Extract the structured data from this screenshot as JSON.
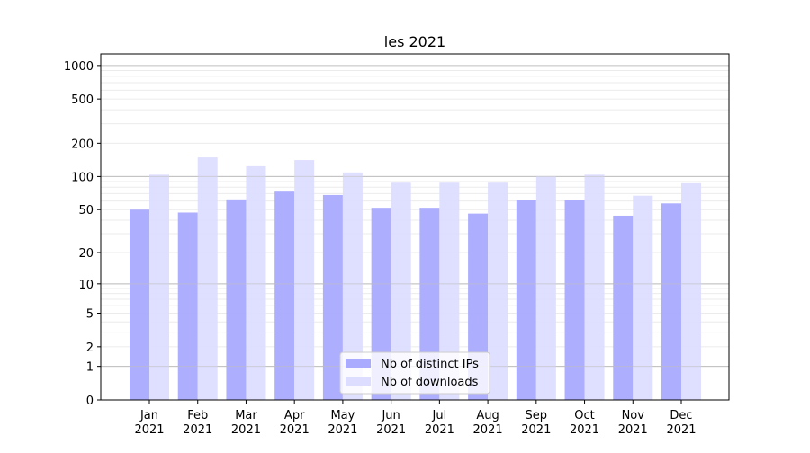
{
  "chart_data": {
    "type": "bar",
    "title": "les 2021",
    "xlabel": "",
    "ylabel": "",
    "yscale": "symlog (log10(1+y))",
    "ylim": [
      0,
      1270
    ],
    "yticks": [
      0,
      1,
      2,
      5,
      10,
      20,
      50,
      100,
      200,
      500,
      1000
    ],
    "grid": true,
    "legend_position": "bottom-center",
    "categories": [
      "Jan\n2021",
      "Feb\n2021",
      "Mar\n2021",
      "Apr\n2021",
      "May\n2021",
      "Jun\n2021",
      "Jul\n2021",
      "Aug\n2021",
      "Sep\n2021",
      "Oct\n2021",
      "Nov\n2021",
      "Dec\n2021"
    ],
    "series": [
      {
        "name": "Nb of distinct IPs",
        "color": "#aaaaff",
        "values": [
          50,
          47,
          62,
          73,
          68,
          52,
          52,
          46,
          61,
          61,
          44,
          57
        ]
      },
      {
        "name": "Nb of downloads",
        "color": "#ddddff",
        "values": [
          104,
          149,
          124,
          141,
          109,
          88,
          88,
          88,
          101,
          104,
          67,
          87
        ]
      }
    ]
  }
}
